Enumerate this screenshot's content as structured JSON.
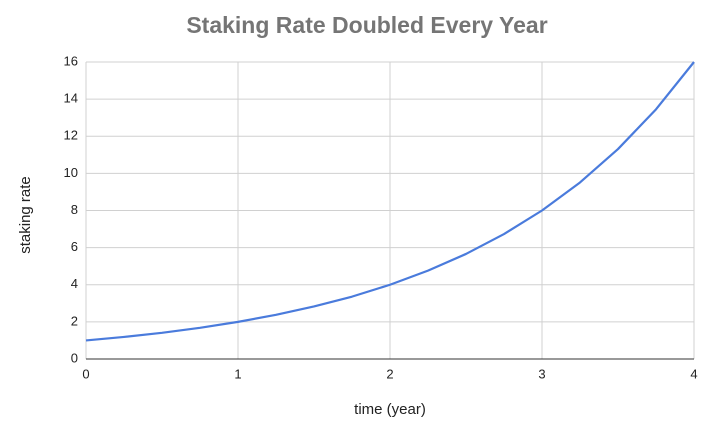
{
  "chart_data": {
    "type": "line",
    "title": "Staking Rate Doubled Every Year",
    "x_label": "time (year)",
    "y_label": "staking rate",
    "x": [
      0,
      0.25,
      0.5,
      0.75,
      1,
      1.25,
      1.5,
      1.75,
      2,
      2.25,
      2.5,
      2.75,
      3,
      3.25,
      3.5,
      3.75,
      4
    ],
    "series": [
      {
        "name": "staking rate",
        "color": "#4a7bdc",
        "values": [
          1,
          1.19,
          1.41,
          1.68,
          2,
          2.38,
          2.83,
          3.36,
          4,
          4.76,
          5.66,
          6.73,
          8,
          9.51,
          11.31,
          13.45,
          16
        ]
      }
    ],
    "xlim": [
      0,
      4
    ],
    "xticks": [
      0,
      1,
      2,
      3,
      4
    ],
    "ylim": [
      0,
      16
    ],
    "yticks": [
      0,
      2,
      4,
      6,
      8,
      10,
      12,
      14,
      16
    ],
    "grid": true
  }
}
